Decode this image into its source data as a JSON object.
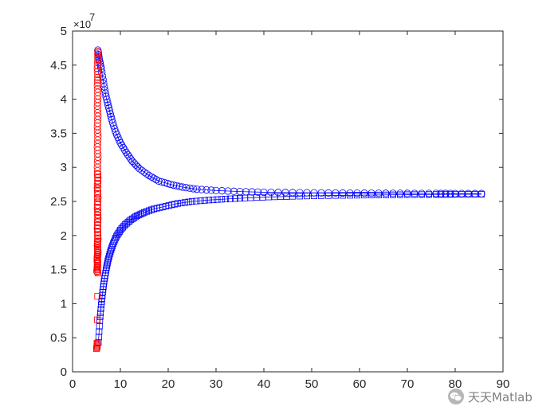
{
  "chart_data": {
    "type": "scatter",
    "title": "",
    "xlabel": "",
    "ylabel": "",
    "xlim": [
      0,
      90
    ],
    "ylim": [
      0,
      50000000
    ],
    "xticks": [
      0,
      10,
      20,
      30,
      40,
      50,
      60,
      70,
      80,
      90
    ],
    "yticks": [
      0,
      5000000,
      10000000,
      15000000,
      20000000,
      25000000,
      30000000,
      35000000,
      40000000,
      45000000,
      50000000
    ],
    "xtick_labels": [
      "0",
      "10",
      "20",
      "30",
      "40",
      "50",
      "60",
      "70",
      "80",
      "90"
    ],
    "ytick_labels": [
      "0",
      "0.5",
      "1",
      "1.5",
      "2",
      "2.5",
      "3",
      "3.5",
      "4",
      "4.5",
      "5"
    ],
    "y_exponent_label": "×10",
    "y_exponent_power": "7",
    "grid": false,
    "legend": "none",
    "series": [
      {
        "marker": "circle",
        "color": "#0000ff",
        "line": true,
        "x": [
          5.3,
          5.6,
          6.0,
          6.5,
          7.0,
          7.6,
          8.2,
          9.0,
          10.0,
          11.2,
          12.5,
          14.0,
          16.0,
          18.0,
          20.5,
          23.0,
          26.0,
          30.0,
          35.0,
          40.0,
          46.0,
          52.0,
          58.0,
          64.0,
          70.0,
          76.0,
          80.0,
          85.5
        ],
        "values": [
          47200000,
          45800000,
          44500000,
          42300000,
          40400000,
          38700000,
          37000000,
          35200000,
          33600000,
          32200000,
          30900000,
          29800000,
          28800000,
          28000000,
          27500000,
          27100000,
          26800000,
          26600000,
          26450000,
          26350000,
          26300000,
          26250000,
          26220000,
          26200000,
          26180000,
          26170000,
          26160000,
          26150000
        ]
      },
      {
        "marker": "square",
        "color": "#0000ff",
        "line": true,
        "x": [
          5.4,
          5.7,
          6.0,
          6.3,
          6.6,
          7.0,
          7.4,
          7.9,
          8.5,
          9.2,
          10.0,
          11.0,
          12.2,
          13.5,
          15.0,
          17.0,
          19.5,
          22.0,
          25.0,
          28.5,
          32.0,
          36.0,
          41.0,
          46.0,
          52.0,
          58.0,
          64.0,
          70.0,
          76.0,
          80.0,
          85.5
        ],
        "values": [
          4300000,
          7500000,
          9800000,
          11700000,
          13300000,
          14900000,
          16300000,
          17600000,
          18800000,
          19900000,
          20800000,
          21600000,
          22300000,
          22900000,
          23400000,
          23900000,
          24300000,
          24700000,
          25000000,
          25200000,
          25350000,
          25500000,
          25650000,
          25750000,
          25850000,
          25900000,
          25950000,
          26000000,
          26020000,
          26040000,
          26050000
        ]
      },
      {
        "marker": "circle",
        "color": "#ff0000",
        "line": false,
        "x": [
          5.1,
          5.2,
          5.2,
          5.3,
          5.2,
          5.3,
          5.2,
          5.3,
          5.2,
          5.3,
          5.2,
          5.3,
          5.2,
          5.3,
          5.2,
          5.3,
          5.2,
          5.3,
          5.2,
          5.3,
          5.2,
          5.3,
          5.2,
          5.3,
          5.3
        ],
        "values": [
          14700000,
          15500000,
          16500000,
          17500000,
          18500000,
          19500000,
          21000000,
          22500000,
          24000000,
          25500000,
          27000000,
          28500000,
          30000000,
          31500000,
          33000000,
          34500000,
          36000000,
          37500000,
          39000000,
          40500000,
          42000000,
          43200000,
          44500000,
          45800000,
          47000000
        ]
      },
      {
        "marker": "square",
        "color": "#ff0000",
        "line": false,
        "x": [
          5.0,
          5.2,
          5.1,
          5.3,
          5.2,
          5.3,
          5.1,
          5.2,
          5.3,
          5.2,
          5.3,
          5.2,
          5.3,
          5.2,
          5.3,
          5.2
        ],
        "values": [
          3400000,
          3800000,
          4200000,
          14500000,
          15200000,
          15900000,
          16500000,
          17200000,
          18000000,
          19000000,
          20500000,
          22000000,
          23500000,
          25500000,
          27500000,
          29000000
        ]
      }
    ]
  },
  "watermark": {
    "icon": "wechat-icon",
    "text": "天天Matlab"
  }
}
